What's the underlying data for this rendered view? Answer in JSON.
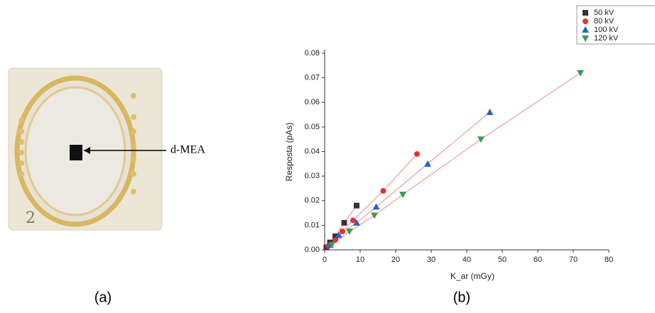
{
  "panel_a": {
    "label": "d-MEA",
    "caption": "(a)"
  },
  "chart_data": {
    "type": "scatter",
    "caption": "(b)",
    "x_label": "K_ar (mGy)",
    "y_label": "Resposta (pAs)",
    "xlim": [
      0,
      80
    ],
    "xticks": [
      0,
      10,
      20,
      30,
      40,
      50,
      60,
      70,
      80
    ],
    "ylim": [
      0,
      0.08
    ],
    "yticks": [
      {
        "value": 0,
        "label": "0.00"
      },
      0.01,
      0.02,
      0.03,
      0.04,
      0.05,
      0.06,
      0.07,
      0.08
    ],
    "fit_color": "#ec8a8a",
    "series": [
      {
        "name": "50 kV",
        "color": "#333333",
        "marker": "square",
        "x": [
          0.5,
          1.5,
          3,
          5.5,
          9
        ],
        "values": [
          0.001,
          0.003,
          0.0055,
          0.011,
          0.018
        ]
      },
      {
        "name": "80 kV",
        "color": "#e8302f",
        "marker": "circle",
        "x": [
          1,
          3,
          5,
          8,
          16.5,
          26
        ],
        "values": [
          0.0015,
          0.004,
          0.0075,
          0.012,
          0.024,
          0.039
        ]
      },
      {
        "name": "100 kV",
        "color": "#2b5fcf",
        "marker": "triangle",
        "x": [
          1.5,
          4,
          9,
          14.5,
          29,
          46.5
        ],
        "values": [
          0.002,
          0.006,
          0.011,
          0.0175,
          0.035,
          0.056
        ]
      },
      {
        "name": "120 kV",
        "color": "#3a9a58",
        "marker": "triangle-down",
        "x": [
          2,
          7,
          14,
          22,
          44,
          72
        ],
        "values": [
          0.002,
          0.0075,
          0.014,
          0.0225,
          0.045,
          0.072
        ]
      }
    ]
  }
}
